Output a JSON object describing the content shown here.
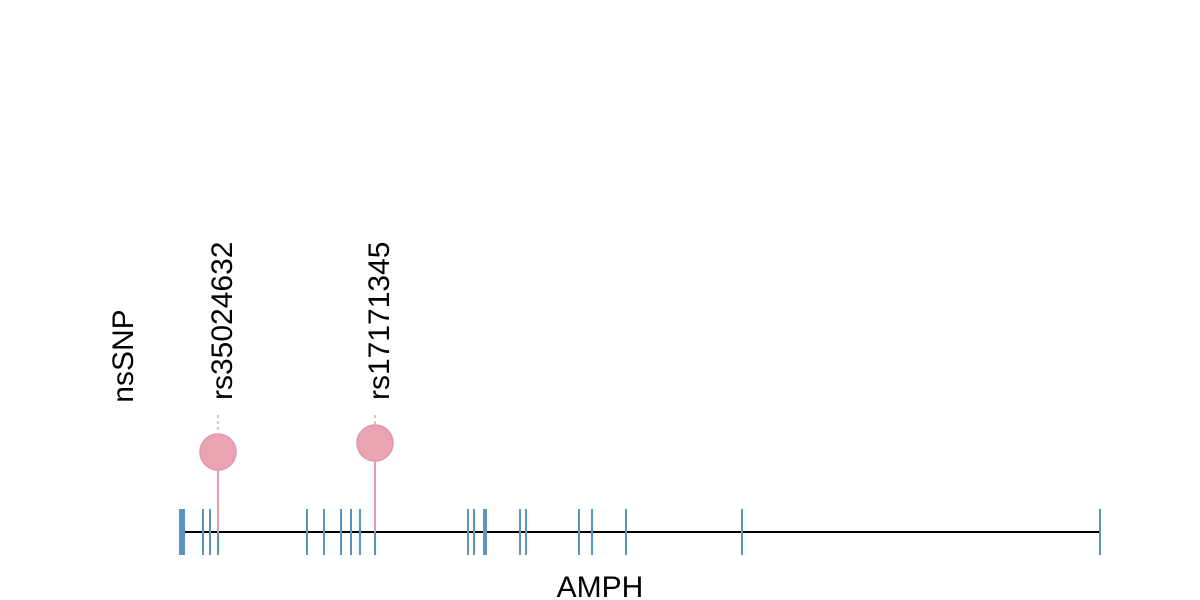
{
  "track_label": "nsSNP",
  "gene": "AMPH",
  "snps": [
    {
      "label": "rs35024632"
    },
    {
      "label": "rs17171345"
    }
  ]
}
